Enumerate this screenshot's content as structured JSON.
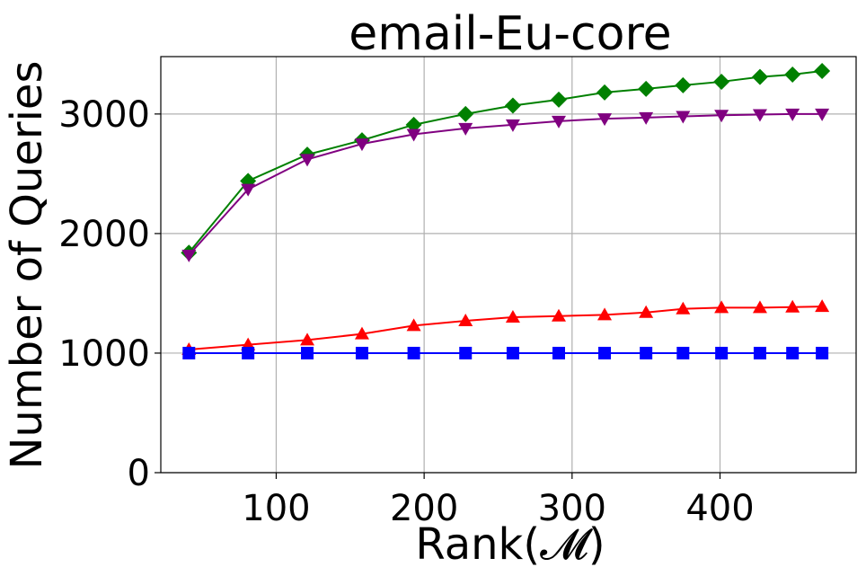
{
  "chart_data": {
    "type": "line",
    "title": "email-Eu-core",
    "xlabel": "Rank(𝓜)",
    "ylabel": "Number of Queries",
    "xlim": [
      22,
      492
    ],
    "ylim": [
      0,
      3480
    ],
    "xticks": [
      100,
      200,
      300,
      400
    ],
    "yticks": [
      0,
      1000,
      2000,
      3000
    ],
    "grid": true,
    "x": [
      41,
      81,
      121,
      158,
      193,
      228,
      260,
      291,
      322,
      350,
      375,
      401,
      427,
      449,
      469
    ],
    "series": [
      {
        "color": "#008000",
        "marker": "diamond",
        "values": [
          1840,
          2440,
          2660,
          2780,
          2910,
          3000,
          3070,
          3120,
          3180,
          3210,
          3240,
          3270,
          3310,
          3330,
          3360
        ]
      },
      {
        "color": "#800080",
        "marker": "triangle-down",
        "values": [
          1820,
          2370,
          2620,
          2750,
          2830,
          2880,
          2910,
          2940,
          2960,
          2970,
          2980,
          2990,
          2995,
          3000,
          3000
        ]
      },
      {
        "color": "#ff0000",
        "marker": "triangle-up",
        "values": [
          1030,
          1070,
          1110,
          1160,
          1230,
          1270,
          1300,
          1310,
          1320,
          1340,
          1370,
          1380,
          1380,
          1385,
          1390
        ]
      },
      {
        "color": "#0000ff",
        "marker": "square",
        "values": [
          1000,
          1000,
          1000,
          1000,
          1000,
          1000,
          1000,
          1000,
          1000,
          1000,
          1000,
          1000,
          1000,
          1000,
          1000
        ]
      }
    ]
  }
}
